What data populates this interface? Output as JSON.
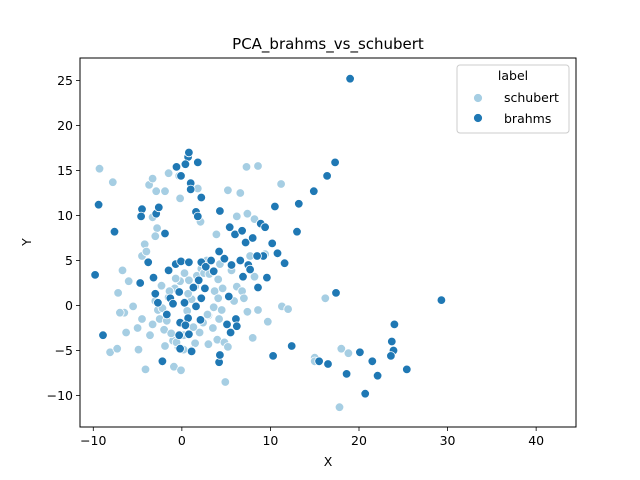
{
  "chart_data": {
    "type": "scatter",
    "title": "PCA_brahms_vs_schubert",
    "xlabel": "X",
    "ylabel": "Y",
    "xlim": [
      -11.5,
      44.5
    ],
    "ylim": [
      -13.5,
      27.5
    ],
    "xticks": [
      -10,
      0,
      10,
      20,
      30,
      40
    ],
    "yticks": [
      -10,
      -5,
      0,
      5,
      10,
      15,
      20,
      25
    ],
    "xtick_labels": [
      "−10",
      "0",
      "10",
      "20",
      "30",
      "40"
    ],
    "ytick_labels": [
      "−10",
      "−5",
      "0",
      "5",
      "10",
      "15",
      "20",
      "25"
    ],
    "grid": false,
    "legend": {
      "title": "label",
      "placement": "top-right"
    },
    "series": [
      {
        "name": "schubert",
        "color": "#a6cee3",
        "points": [
          [
            -9.3,
            15.2
          ],
          [
            -7.8,
            13.7
          ],
          [
            -4.5,
            5.5
          ],
          [
            -3.7,
            13.4
          ],
          [
            -3.3,
            14.1
          ],
          [
            -2.9,
            12.7
          ],
          [
            -3.3,
            9.8
          ],
          [
            -2.8,
            8.6
          ],
          [
            -3.0,
            7.7
          ],
          [
            -4.2,
            6.8
          ],
          [
            -4.0,
            6.0
          ],
          [
            -7.2,
            1.4
          ],
          [
            -6.7,
            3.9
          ],
          [
            -6.0,
            2.7
          ],
          [
            -5.5,
            -0.1
          ],
          [
            -6.5,
            -0.8
          ],
          [
            -7.0,
            -0.8
          ],
          [
            -5.0,
            -2.5
          ],
          [
            -4.5,
            -1.5
          ],
          [
            -6.3,
            -3.0
          ],
          [
            -8.1,
            -5.2
          ],
          [
            -7.3,
            -4.8
          ],
          [
            -4.9,
            -4.9
          ],
          [
            -4.1,
            -7.1
          ],
          [
            -3.6,
            -3.3
          ],
          [
            -3.3,
            -2.1
          ],
          [
            -2.7,
            -0.5
          ],
          [
            -3.0,
            0.5
          ],
          [
            -2.5,
            -1.5
          ],
          [
            -2.0,
            -2.7
          ],
          [
            -1.9,
            -4.5
          ],
          [
            -1.0,
            -3.9
          ],
          [
            -0.9,
            -6.8
          ],
          [
            -0.1,
            -7.2
          ],
          [
            -0.4,
            -4.6
          ],
          [
            0.2,
            -3.3
          ],
          [
            0.5,
            -2.2
          ],
          [
            0.6,
            -0.6
          ],
          [
            0.3,
            0.4
          ],
          [
            1.1,
            0.7
          ],
          [
            0.7,
            1.3
          ],
          [
            1.5,
            2.1
          ],
          [
            0.8,
            2.8
          ],
          [
            1.7,
            3.3
          ],
          [
            2.2,
            4.1
          ],
          [
            2.5,
            3.6
          ],
          [
            3.1,
            3.5
          ],
          [
            2.8,
            5.0
          ],
          [
            3.7,
            1.6
          ],
          [
            3.6,
            -0.2
          ],
          [
            3.0,
            -1.1
          ],
          [
            2.4,
            -1.9
          ],
          [
            2.0,
            -3.0
          ],
          [
            1.5,
            -4.2
          ],
          [
            1.1,
            -5.0
          ],
          [
            0.2,
            -4.9
          ],
          [
            -0.6,
            -4.1
          ],
          [
            -1.2,
            -3.1
          ],
          [
            -1.7,
            -1.7
          ],
          [
            -2.2,
            -0.3
          ],
          [
            -1.5,
            0.9
          ],
          [
            -0.8,
            1.9
          ],
          [
            -0.2,
            2.7
          ],
          [
            0.3,
            3.6
          ],
          [
            -0.7,
            3.0
          ],
          [
            4.3,
            4.6
          ],
          [
            4.1,
            2.9
          ],
          [
            4.6,
            1.9
          ],
          [
            4.1,
            0.8
          ],
          [
            4.5,
            -0.5
          ],
          [
            4.2,
            -1.5
          ],
          [
            3.5,
            -2.5
          ],
          [
            3.0,
            -4.3
          ],
          [
            4.0,
            -3.8
          ],
          [
            4.8,
            -4.1
          ],
          [
            4.9,
            -8.5
          ],
          [
            5.2,
            12.8
          ],
          [
            6.6,
            12.5
          ],
          [
            7.3,
            15.4
          ],
          [
            8.6,
            15.5
          ],
          [
            6.2,
            9.9
          ],
          [
            7.4,
            10.2
          ],
          [
            8.2,
            9.6
          ],
          [
            3.9,
            7.9
          ],
          [
            2.1,
            9.3
          ],
          [
            1.8,
            13.0
          ],
          [
            -0.3,
            14.4
          ],
          [
            -1.5,
            14.7
          ],
          [
            -1.9,
            12.7
          ],
          [
            -0.2,
            11.9
          ],
          [
            11.2,
            13.5
          ],
          [
            5.6,
            3.9
          ],
          [
            6.2,
            2.1
          ],
          [
            6.8,
            1.6
          ],
          [
            8.2,
            3.2
          ],
          [
            9.4,
            5.7
          ],
          [
            7.7,
            5.5
          ],
          [
            5.9,
            0.5
          ],
          [
            7.0,
            0.8
          ],
          [
            7.4,
            -0.7
          ],
          [
            8.6,
            -0.5
          ],
          [
            9.7,
            -1.8
          ],
          [
            11.3,
            -0.1
          ],
          [
            12.0,
            -0.4
          ],
          [
            8.0,
            -3.6
          ],
          [
            5.2,
            -4.6
          ],
          [
            16.2,
            0.8
          ],
          [
            15.0,
            -5.8
          ],
          [
            15.0,
            -6.2
          ],
          [
            18.0,
            -4.8
          ],
          [
            18.8,
            -5.3
          ],
          [
            17.8,
            -11.3
          ],
          [
            2.9,
            -1.0
          ],
          [
            1.3,
            -2.4
          ],
          [
            -1.4,
            1.6
          ],
          [
            -2.3,
            2.2
          ]
        ]
      },
      {
        "name": "brahms",
        "color": "#1f78b4",
        "points": [
          [
            -9.8,
            3.4
          ],
          [
            -9.4,
            11.2
          ],
          [
            -8.9,
            -3.3
          ],
          [
            -7.6,
            8.2
          ],
          [
            -4.5,
            10.7
          ],
          [
            -4.6,
            9.9
          ],
          [
            -2.9,
            10.2
          ],
          [
            -2.6,
            10.9
          ],
          [
            -1.9,
            8.0
          ],
          [
            -3.8,
            4.8
          ],
          [
            -3.2,
            3.1
          ],
          [
            -4.7,
            2.5
          ],
          [
            -3.0,
            1.3
          ],
          [
            -2.7,
            0.3
          ],
          [
            -1.7,
            -1.0
          ],
          [
            -1.3,
            0.8
          ],
          [
            -2.2,
            -6.2
          ],
          [
            -1.5,
            3.9
          ],
          [
            -0.7,
            4.6
          ],
          [
            -0.6,
            15.4
          ],
          [
            -0.1,
            14.4
          ],
          [
            0.7,
            16.5
          ],
          [
            0.8,
            17.0
          ],
          [
            0.4,
            15.7
          ],
          [
            1.8,
            15.9
          ],
          [
            1.0,
            13.6
          ],
          [
            1.0,
            12.9
          ],
          [
            1.6,
            10.4
          ],
          [
            1.8,
            9.9
          ],
          [
            2.2,
            12.0
          ],
          [
            -0.1,
            4.9
          ],
          [
            0.8,
            4.8
          ],
          [
            2.2,
            4.8
          ],
          [
            2.7,
            4.3
          ],
          [
            1.9,
            2.8
          ],
          [
            1.3,
            2.0
          ],
          [
            0.3,
            0.3
          ],
          [
            1.6,
            -0.1
          ],
          [
            2.2,
            0.8
          ],
          [
            0.7,
            -1.4
          ],
          [
            -0.2,
            -1.9
          ],
          [
            -0.3,
            -3.3
          ],
          [
            -0.2,
            -4.8
          ],
          [
            0.8,
            -3.2
          ],
          [
            1.1,
            -5.1
          ],
          [
            4.3,
            10.5
          ],
          [
            5.4,
            8.7
          ],
          [
            6.0,
            7.9
          ],
          [
            6.8,
            8.3
          ],
          [
            7.2,
            7.0
          ],
          [
            8.0,
            7.5
          ],
          [
            8.9,
            9.1
          ],
          [
            9.4,
            8.7
          ],
          [
            10.5,
            11.0
          ],
          [
            10.2,
            6.9
          ],
          [
            9.2,
            5.5
          ],
          [
            8.5,
            5.5
          ],
          [
            7.5,
            4.5
          ],
          [
            6.6,
            5.0
          ],
          [
            5.6,
            4.5
          ],
          [
            4.8,
            5.2
          ],
          [
            4.2,
            6.0
          ],
          [
            10.8,
            5.8
          ],
          [
            11.6,
            4.7
          ],
          [
            9.6,
            3.1
          ],
          [
            6.9,
            3.2
          ],
          [
            5.3,
            1.0
          ],
          [
            6.1,
            -1.5
          ],
          [
            5.1,
            -2.1
          ],
          [
            4.2,
            -6.3
          ],
          [
            4.3,
            -5.5
          ],
          [
            5.5,
            -3.0
          ],
          [
            6.2,
            -2.3
          ],
          [
            2.1,
            -1.6
          ],
          [
            0.4,
            -2.2
          ],
          [
            13.2,
            11.3
          ],
          [
            14.9,
            12.7
          ],
          [
            16.4,
            14.4
          ],
          [
            17.3,
            15.9
          ],
          [
            13.0,
            8.2
          ],
          [
            19.0,
            25.2
          ],
          [
            29.3,
            0.6
          ],
          [
            17.4,
            1.4
          ],
          [
            24.0,
            -2.1
          ],
          [
            23.7,
            -4.0
          ],
          [
            23.9,
            -5.0
          ],
          [
            23.6,
            -5.6
          ],
          [
            25.4,
            -7.1
          ],
          [
            22.1,
            -7.8
          ],
          [
            21.5,
            -6.2
          ],
          [
            20.1,
            -5.2
          ],
          [
            18.6,
            -7.6
          ],
          [
            16.5,
            -6.5
          ],
          [
            15.5,
            -6.2
          ],
          [
            20.7,
            -9.8
          ],
          [
            12.4,
            -4.5
          ],
          [
            10.3,
            -5.6
          ],
          [
            3.6,
            3.8
          ],
          [
            2.6,
            1.9
          ],
          [
            -1.0,
            0.2
          ],
          [
            -0.3,
            1.5
          ],
          [
            3.3,
            5.0
          ],
          [
            7.7,
            4.0
          ],
          [
            8.6,
            2.0
          ]
        ]
      }
    ]
  }
}
